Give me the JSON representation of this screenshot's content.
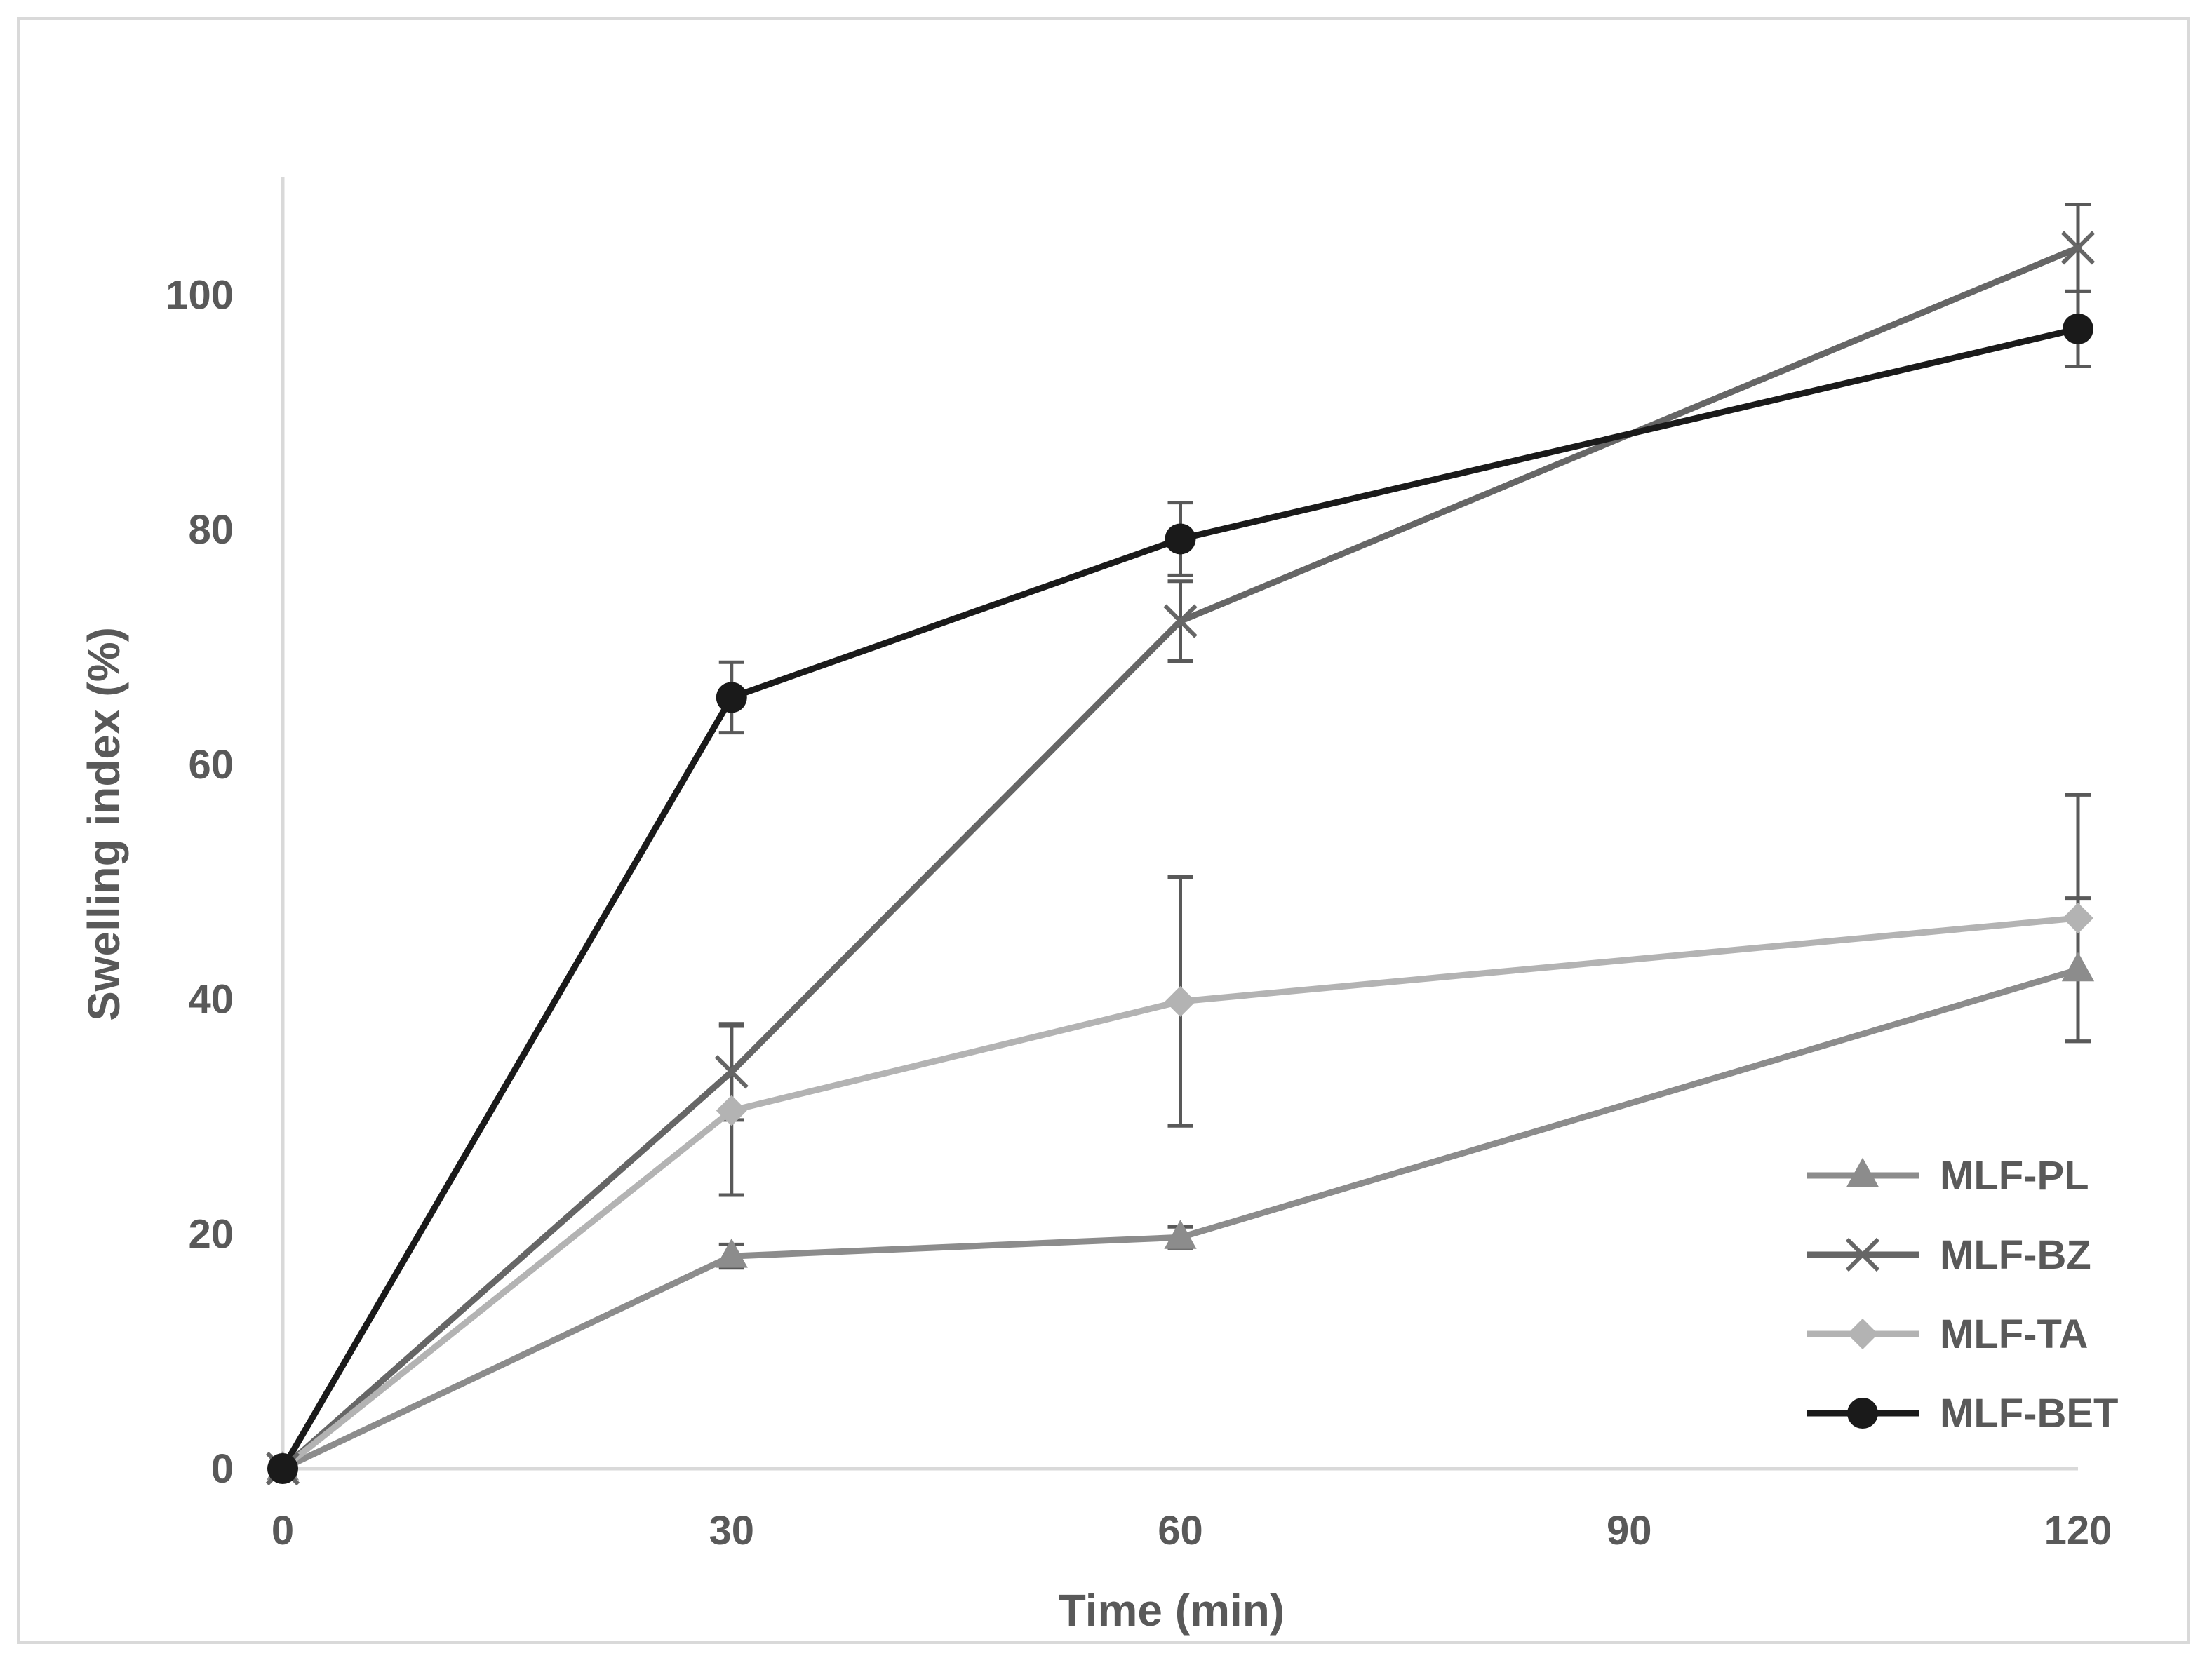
{
  "chart_data": {
    "type": "line",
    "title": "",
    "xlabel": "Time (min)",
    "ylabel": "Swelling index (%)",
    "x": [
      0,
      30,
      60,
      120
    ],
    "xticks": [
      "0",
      "30",
      "60",
      "90",
      "120"
    ],
    "xtick_values": [
      0,
      30,
      60,
      90,
      120
    ],
    "yticks": [
      "0",
      "20",
      "40",
      "60",
      "80",
      "100"
    ],
    "ytick_values": [
      0,
      20,
      40,
      60,
      80,
      100
    ],
    "xlim": [
      0,
      120
    ],
    "ylim": [
      0,
      110
    ],
    "grid": false,
    "legend_position": "bottom-right",
    "series": [
      {
        "name": "MLF-PL",
        "marker": "triangle",
        "color": "#8c8c8c",
        "values": [
          0,
          18.1,
          19.7,
          42.5
        ],
        "errors": [
          0,
          1.0,
          0.9,
          6.1
        ]
      },
      {
        "name": "MLF-BZ",
        "marker": "x",
        "color": "#666666",
        "values": [
          0,
          33.8,
          72.2,
          104.0
        ],
        "errors": [
          0,
          4.1,
          3.4,
          3.7
        ]
      },
      {
        "name": "MLF-TA",
        "marker": "diamond",
        "color": "#b3b3b3",
        "values": [
          0,
          30.5,
          39.8,
          46.9
        ],
        "errors": [
          0,
          7.2,
          10.6,
          10.5
        ]
      },
      {
        "name": "MLF-BET",
        "marker": "circle",
        "color": "#1a1a1a",
        "values": [
          0,
          65.7,
          79.2,
          97.1
        ],
        "errors": [
          0,
          3.0,
          3.1,
          3.2
        ]
      }
    ]
  }
}
